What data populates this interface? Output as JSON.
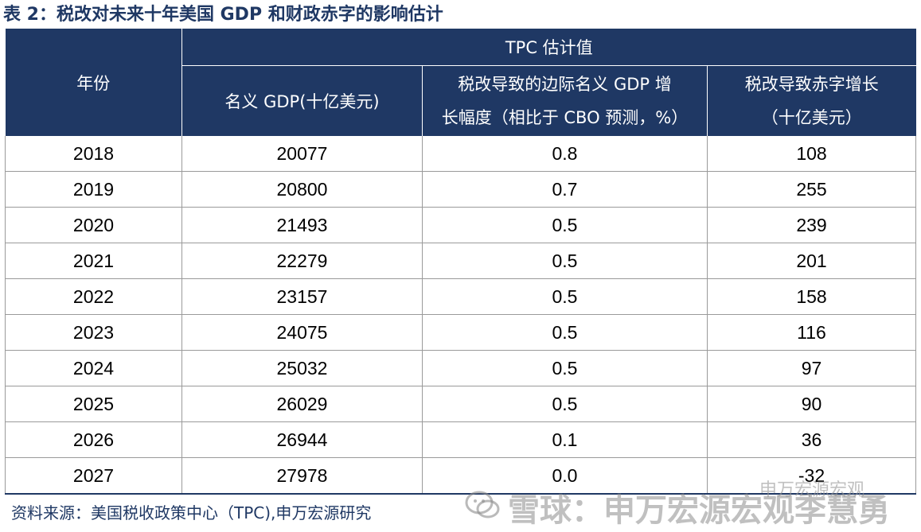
{
  "title": "表 2：税改对未来十年美国 GDP 和财政赤字的影响估计",
  "table": {
    "header": {
      "year": "年份",
      "group": "TPC 估计值",
      "gdp": "名义 GDP(十亿美元)",
      "growth_line1": "税改导致的边际名义 GDP 增",
      "growth_line2": "长幅度（相比于 CBO 预测，%）",
      "deficit_line1": "税改导致赤字增长",
      "deficit_line2": "（十亿美元）"
    },
    "rows": [
      {
        "year": "2018",
        "gdp": "20077",
        "growth": "0.8",
        "deficit": "108"
      },
      {
        "year": "2019",
        "gdp": "20800",
        "growth": "0.7",
        "deficit": "255"
      },
      {
        "year": "2020",
        "gdp": "21493",
        "growth": "0.5",
        "deficit": "239"
      },
      {
        "year": "2021",
        "gdp": "22279",
        "growth": "0.5",
        "deficit": "201"
      },
      {
        "year": "2022",
        "gdp": "23157",
        "growth": "0.5",
        "deficit": "158"
      },
      {
        "year": "2023",
        "gdp": "24075",
        "growth": "0.5",
        "deficit": "116"
      },
      {
        "year": "2024",
        "gdp": "25032",
        "growth": "0.5",
        "deficit": "97"
      },
      {
        "year": "2025",
        "gdp": "26029",
        "growth": "0.5",
        "deficit": "90"
      },
      {
        "year": "2026",
        "gdp": "26944",
        "growth": "0.1",
        "deficit": "36"
      },
      {
        "year": "2027",
        "gdp": "27978",
        "growth": "0.0",
        "deficit": "-32"
      }
    ]
  },
  "source": "资料来源：美国税收政策中心（TPC),申万宏源研究",
  "watermark": {
    "small": "申万宏源宏观",
    "main": "雪球：申万宏源宏观李慧勇",
    "icon": "wechat-icon"
  },
  "colors": {
    "header_bg": "#1F3864",
    "title_text": "#1F3864"
  }
}
